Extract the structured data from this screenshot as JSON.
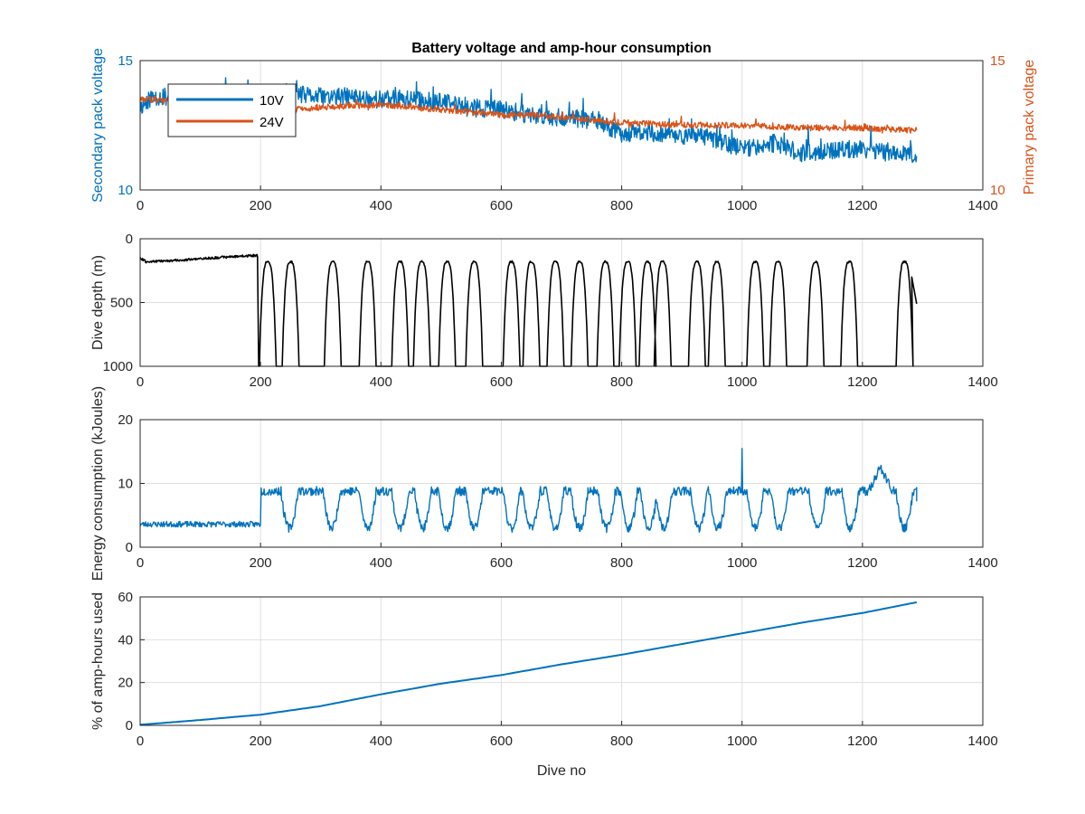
{
  "chart_data": [
    {
      "type": "line",
      "title": "Battery voltage and amp-hour consumption",
      "xlabel": "",
      "ylabel": "Secondary pack voltage",
      "ylabel_right": "Primary pack voltage",
      "xlim": [
        0,
        1400
      ],
      "ylim": [
        10,
        15
      ],
      "ylim_right": [
        10,
        15
      ],
      "xticks": [
        "0",
        "200",
        "400",
        "600",
        "800",
        "1000",
        "1200",
        "1400"
      ],
      "yticks": [
        "10",
        "15"
      ],
      "yticks_right": [
        "10",
        "15"
      ],
      "grid": true,
      "legend": "top-left",
      "series": [
        {
          "name": "10V",
          "axis": "left",
          "color": "#0072BD",
          "x": [
            0,
            20,
            60,
            100,
            150,
            200,
            240,
            250,
            300,
            350,
            400,
            450,
            500,
            550,
            600,
            650,
            700,
            750,
            800,
            850,
            900,
            950,
            1000,
            1050,
            1100,
            1150,
            1200,
            1250,
            1280,
            1290
          ],
          "y": [
            13.2,
            13.6,
            13.6,
            13.6,
            13.6,
            13.7,
            13.8,
            13.7,
            13.6,
            13.6,
            13.5,
            13.5,
            13.4,
            13.2,
            13.1,
            12.9,
            12.8,
            12.7,
            12.2,
            12.2,
            12.1,
            12.0,
            11.6,
            11.8,
            11.4,
            11.5,
            11.6,
            11.4,
            11.5,
            11.0
          ],
          "noise": 0.35
        },
        {
          "name": "24V",
          "axis": "right",
          "color": "#D95319",
          "x": [
            0,
            100,
            200,
            250,
            300,
            400,
            500,
            600,
            650,
            700,
            750,
            800,
            900,
            1000,
            1100,
            1200,
            1290
          ],
          "y": [
            13.5,
            13.5,
            13.5,
            13.1,
            13.2,
            13.3,
            13.1,
            12.9,
            12.9,
            12.8,
            12.7,
            12.6,
            12.5,
            12.5,
            12.4,
            12.4,
            12.3
          ],
          "noise": 0.12
        }
      ]
    },
    {
      "type": "line",
      "title": "",
      "xlabel": "",
      "ylabel": "Dive depth (m)",
      "xlim": [
        0,
        1400
      ],
      "ylim": [
        1000,
        0
      ],
      "y_reversed": true,
      "xticks": [
        "0",
        "200",
        "400",
        "600",
        "800",
        "1000",
        "1200",
        "1400"
      ],
      "yticks": [
        "0",
        "500",
        "1000"
      ],
      "grid": true,
      "series": [
        {
          "name": "",
          "color": "#000000",
          "shallow_phase": {
            "x": [
              0,
              10,
              60,
              120,
              195
            ],
            "y": [
              150,
              180,
              170,
              150,
              130
            ]
          },
          "dive_peaks_x": [
            212,
            250,
            320,
            378,
            432,
            468,
            510,
            555,
            617,
            650,
            690,
            730,
            773,
            810,
            843,
            868,
            925,
            958,
            1022,
            1060,
            1122,
            1178,
            1270
          ],
          "max_depth": 1000,
          "end": {
            "x": 1290,
            "y": 510
          }
        }
      ]
    },
    {
      "type": "line",
      "title": "",
      "xlabel": "",
      "ylabel": "Energy consumption (kJoules)",
      "xlim": [
        0,
        1400
      ],
      "ylim": [
        0,
        20
      ],
      "xticks": [
        "0",
        "200",
        "400",
        "600",
        "800",
        "1000",
        "1200",
        "1400"
      ],
      "yticks": [
        "0",
        "10",
        "20"
      ],
      "grid": true,
      "series": [
        {
          "name": "",
          "color": "#0072BD",
          "baseline_phase": {
            "x_start": 0,
            "x_end": 200,
            "value": 3.6
          },
          "dive_lows_x": [
            248,
            318,
            378,
            432,
            470,
            510,
            555,
            617,
            650,
            690,
            730,
            775,
            812,
            845,
            870,
            928,
            960,
            1022,
            1062,
            1125,
            1180,
            1270
          ],
          "low_value": 3.0,
          "high_value": 8.8,
          "spike": {
            "x": 1000,
            "y": 16.0
          },
          "bump": {
            "x": 1230,
            "y": 12.5
          },
          "end": {
            "x": 1290,
            "y": 7.2
          }
        }
      ]
    },
    {
      "type": "line",
      "title": "",
      "xlabel": "Dive no",
      "ylabel": "% of amp-hours used",
      "xlim": [
        0,
        1400
      ],
      "ylim": [
        0,
        60
      ],
      "xticks": [
        "0",
        "200",
        "400",
        "600",
        "800",
        "1000",
        "1200",
        "1400"
      ],
      "yticks": [
        "0",
        "20",
        "40",
        "60"
      ],
      "grid": true,
      "series": [
        {
          "name": "",
          "color": "#0072BD",
          "x": [
            0,
            100,
            200,
            300,
            400,
            500,
            600,
            700,
            800,
            900,
            1000,
            1100,
            1200,
            1290
          ],
          "y": [
            0.3,
            2.5,
            5.0,
            9.0,
            14.5,
            19.5,
            23.5,
            28.5,
            33.0,
            38.0,
            43.0,
            48.0,
            52.5,
            57.5
          ]
        }
      ]
    }
  ]
}
